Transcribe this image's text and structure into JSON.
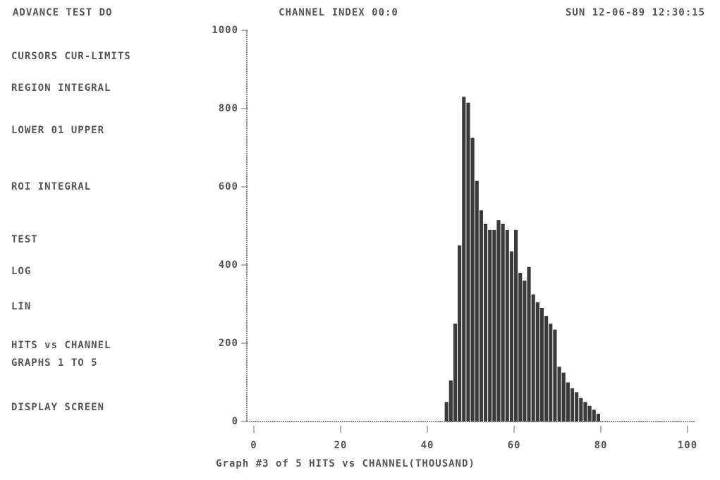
{
  "header": {
    "left": "ADVANCE TEST DO",
    "center": "CHANNEL INDEX 00:0",
    "right": "SUN 12-06-89 12:30:15"
  },
  "panel": {
    "items": [
      "CURSORS CUR-LIMITS",
      "REGION INTEGRAL",
      "LOWER 01  UPPER",
      "ROI INTEGRAL",
      "TEST",
      "LOG",
      "LIN",
      "HITS vs CHANNEL",
      "GRAPHS 1 TO 5",
      "DISPLAY SCREEN"
    ]
  },
  "chart_data": {
    "type": "histogram",
    "xlabel": "Graph #3 of 5  HITS vs CHANNEL(THOUSAND)",
    "bins": [
      44,
      45,
      46,
      47,
      48,
      49,
      50,
      51,
      52,
      53,
      54,
      55,
      56,
      57,
      58,
      59,
      60,
      61,
      62,
      63,
      64,
      65,
      66,
      67,
      68,
      69,
      70,
      71,
      72,
      73,
      74,
      75,
      76,
      77,
      78,
      79,
      80
    ],
    "values": [
      50,
      105,
      250,
      450,
      830,
      815,
      725,
      615,
      540,
      505,
      490,
      490,
      515,
      505,
      490,
      435,
      490,
      380,
      360,
      395,
      325,
      305,
      290,
      270,
      250,
      235,
      140,
      125,
      100,
      85,
      75,
      60,
      50,
      40,
      30,
      20
    ],
    "color": "#3a3a3a",
    "xlim": [
      0,
      100
    ],
    "xticks": [
      0,
      20,
      40,
      60,
      80,
      100
    ],
    "ylim": [
      0,
      1000
    ],
    "yticks": [
      0,
      200,
      400,
      600,
      800,
      1000
    ],
    "grid": false
  }
}
